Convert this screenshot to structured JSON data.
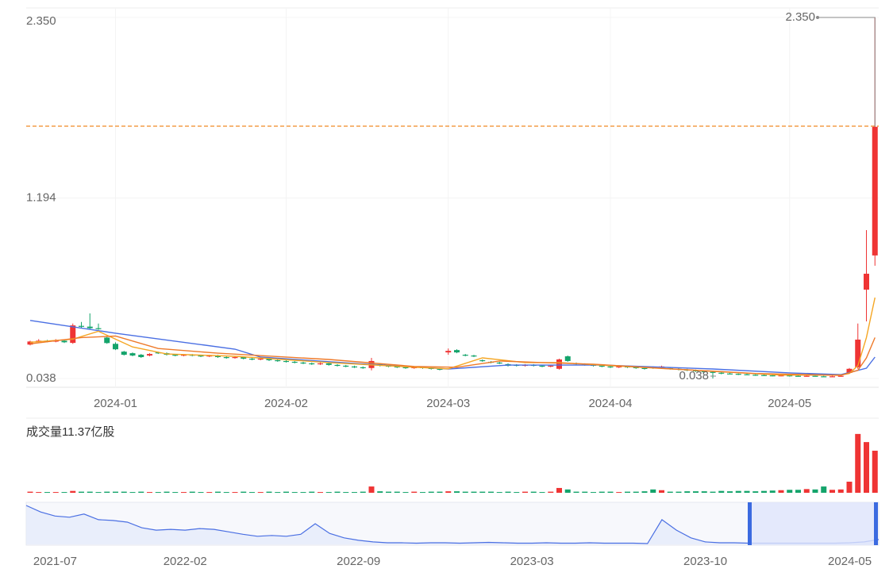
{
  "chart_data": {
    "type": "candlestick",
    "categories": [
      null,
      null,
      null,
      null,
      null,
      null,
      null,
      null,
      null,
      null,
      "2024-01",
      null,
      null,
      null,
      null,
      null,
      null,
      null,
      null,
      null,
      null,
      null,
      null,
      null,
      null,
      null,
      null,
      null,
      null,
      null,
      "2024-02",
      null,
      null,
      null,
      null,
      null,
      null,
      null,
      null,
      null,
      null,
      null,
      null,
      null,
      null,
      null,
      null,
      null,
      null,
      "2024-03",
      null,
      null,
      null,
      null,
      null,
      null,
      null,
      null,
      null,
      null,
      null,
      null,
      null,
      null,
      null,
      null,
      null,
      null,
      "2024-04",
      null,
      null,
      null,
      null,
      null,
      null,
      null,
      null,
      null,
      null,
      null,
      null,
      null,
      null,
      null,
      null,
      null,
      null,
      null,
      null,
      "2024-05",
      null,
      null,
      null,
      null,
      null,
      null,
      null,
      null,
      null,
      null
    ],
    "open": [
      0.255,
      0.275,
      0.28,
      0.275,
      0.28,
      0.266,
      0.375,
      0.37,
      0.36,
      0.3,
      0.26,
      0.21,
      0.2,
      0.19,
      0.185,
      0.205,
      0.2,
      0.19,
      0.185,
      0.19,
      0.185,
      0.18,
      0.185,
      0.175,
      0.17,
      0.175,
      0.165,
      0.16,
      0.165,
      0.155,
      0.15,
      0.145,
      0.14,
      0.135,
      0.13,
      0.135,
      0.125,
      0.12,
      0.115,
      0.11,
      0.105,
      0.13,
      0.12,
      0.115,
      0.11,
      0.105,
      0.11,
      0.105,
      0.1,
      0.205,
      0.22,
      0.19,
      0.185,
      0.155,
      0.145,
      0.14,
      0.13,
      0.125,
      0.12,
      0.125,
      0.12,
      0.115,
      0.1,
      0.18,
      0.135,
      0.13,
      0.125,
      0.12,
      0.115,
      0.11,
      0.115,
      0.11,
      0.105,
      0.11,
      0.11,
      0.105,
      0.1,
      0.095,
      0.09,
      0.085,
      0.08,
      0.075,
      0.07,
      0.068,
      0.065,
      0.062,
      0.06,
      0.058,
      0.056,
      0.058,
      0.055,
      0.053,
      0.055,
      0.052,
      0.05,
      0.052,
      0.074,
      0.11,
      0.607,
      0.826
    ],
    "close": [
      0.275,
      0.28,
      0.275,
      0.28,
      0.27,
      0.378,
      0.37,
      0.36,
      0.355,
      0.265,
      0.225,
      0.19,
      0.185,
      0.175,
      0.195,
      0.2,
      0.19,
      0.185,
      0.19,
      0.185,
      0.18,
      0.185,
      0.175,
      0.17,
      0.175,
      0.165,
      0.16,
      0.165,
      0.155,
      0.15,
      0.145,
      0.14,
      0.135,
      0.13,
      0.135,
      0.125,
      0.12,
      0.115,
      0.11,
      0.105,
      0.15,
      0.12,
      0.115,
      0.11,
      0.105,
      0.11,
      0.105,
      0.1,
      0.095,
      0.215,
      0.205,
      0.185,
      0.18,
      0.15,
      0.14,
      0.135,
      0.12,
      0.12,
      0.125,
      0.12,
      0.115,
      0.12,
      0.16,
      0.15,
      0.13,
      0.125,
      0.12,
      0.115,
      0.11,
      0.115,
      0.11,
      0.105,
      0.1,
      0.105,
      0.115,
      0.1,
      0.095,
      0.09,
      0.085,
      0.08,
      0.075,
      0.07,
      0.068,
      0.065,
      0.062,
      0.06,
      0.058,
      0.056,
      0.058,
      0.055,
      0.053,
      0.055,
      0.052,
      0.05,
      0.052,
      0.055,
      0.1,
      0.287,
      0.709,
      1.65
    ],
    "high": [
      0.28,
      0.29,
      0.285,
      0.29,
      0.285,
      0.39,
      0.4,
      0.455,
      0.39,
      0.31,
      0.27,
      0.215,
      0.205,
      0.195,
      0.2,
      0.21,
      0.205,
      0.195,
      0.195,
      0.195,
      0.19,
      0.19,
      0.19,
      0.18,
      0.18,
      0.18,
      0.17,
      0.17,
      0.17,
      0.16,
      0.155,
      0.15,
      0.145,
      0.14,
      0.14,
      0.14,
      0.13,
      0.125,
      0.12,
      0.115,
      0.17,
      0.135,
      0.125,
      0.12,
      0.115,
      0.115,
      0.115,
      0.11,
      0.105,
      0.23,
      0.225,
      0.195,
      0.19,
      0.16,
      0.15,
      0.145,
      0.135,
      0.13,
      0.13,
      0.13,
      0.125,
      0.125,
      0.165,
      0.185,
      0.14,
      0.135,
      0.13,
      0.125,
      0.12,
      0.12,
      0.12,
      0.115,
      0.11,
      0.115,
      0.12,
      0.11,
      0.105,
      0.1,
      0.095,
      0.09,
      0.085,
      0.08,
      0.075,
      0.07,
      0.07,
      0.065,
      0.065,
      0.06,
      0.062,
      0.06,
      0.058,
      0.058,
      0.057,
      0.055,
      0.055,
      0.058,
      0.105,
      0.39,
      0.988,
      2.35
    ],
    "low": [
      0.25,
      0.27,
      0.27,
      0.27,
      0.265,
      0.26,
      0.36,
      0.355,
      0.35,
      0.26,
      0.22,
      0.185,
      0.18,
      0.17,
      0.18,
      0.195,
      0.185,
      0.18,
      0.18,
      0.18,
      0.175,
      0.175,
      0.17,
      0.165,
      0.165,
      0.16,
      0.155,
      0.155,
      0.15,
      0.145,
      0.14,
      0.135,
      0.13,
      0.125,
      0.125,
      0.12,
      0.115,
      0.11,
      0.105,
      0.1,
      0.09,
      0.115,
      0.11,
      0.105,
      0.1,
      0.1,
      0.1,
      0.095,
      0.09,
      0.19,
      0.2,
      0.18,
      0.175,
      0.145,
      0.135,
      0.13,
      0.115,
      0.115,
      0.115,
      0.115,
      0.11,
      0.11,
      0.095,
      0.145,
      0.125,
      0.12,
      0.115,
      0.11,
      0.105,
      0.105,
      0.105,
      0.1,
      0.095,
      0.1,
      0.105,
      0.095,
      0.09,
      0.085,
      0.08,
      0.075,
      0.038,
      0.065,
      0.065,
      0.06,
      0.06,
      0.055,
      0.055,
      0.052,
      0.052,
      0.05,
      0.05,
      0.05,
      0.05,
      0.048,
      0.048,
      0.05,
      0.07,
      0.1,
      0.404,
      0.76
    ],
    "up_color": "#ef3434",
    "down_color": "#14a46b",
    "ylim": [
      -0.018,
      2.411
    ],
    "yticks": [
      {
        "value": 2.35,
        "label": "2.350"
      },
      1.194,
      0.038
    ],
    "grid": true,
    "reference_line": 1.654,
    "reference_color": "#f08a24",
    "high_label": "2.350",
    "low_label": "0.038",
    "moving_averages": [
      {
        "color": "#4a6fe3",
        "x": [
          0,
          10,
          24,
          27,
          38,
          49,
          56,
          67,
          80,
          89,
          95,
          98,
          99
        ],
        "values": [
          0.41,
          0.328,
          0.226,
          0.175,
          0.135,
          0.099,
          0.124,
          0.124,
          0.099,
          0.074,
          0.063,
          0.104,
          0.175
        ]
      },
      {
        "color": "#f5a623",
        "x": [
          0,
          5,
          8,
          12,
          16,
          24,
          35,
          45,
          49,
          53,
          58,
          62,
          68,
          78,
          88,
          95,
          96,
          97,
          98,
          99
        ],
        "values": [
          0.27,
          0.29,
          0.34,
          0.24,
          0.195,
          0.18,
          0.14,
          0.11,
          0.1,
          0.17,
          0.14,
          0.14,
          0.12,
          0.09,
          0.06,
          0.06,
          0.07,
          0.12,
          0.3,
          0.556
        ]
      },
      {
        "color": "#ee7a2a",
        "x": [
          0,
          6,
          10,
          15,
          22,
          35,
          45,
          50,
          55,
          60,
          66,
          75,
          85,
          95,
          97,
          98,
          99
        ],
        "values": [
          0.26,
          0.3,
          0.31,
          0.23,
          0.2,
          0.16,
          0.115,
          0.11,
          0.15,
          0.14,
          0.13,
          0.1,
          0.07,
          0.058,
          0.09,
          0.17,
          0.3
        ]
      }
    ],
    "volume": {
      "label": "成交量11.37亿股",
      "ylim": [
        0,
        16.3
      ],
      "values": [
        0.3,
        0.2,
        0.2,
        0.2,
        0.2,
        0.5,
        0.3,
        0.3,
        0.2,
        0.3,
        0.3,
        0.3,
        0.2,
        0.3,
        0.2,
        0.2,
        0.3,
        0.2,
        0.2,
        0.3,
        0.2,
        0.2,
        0.3,
        0.2,
        0.2,
        0.3,
        0.2,
        0.2,
        0.3,
        0.2,
        0.3,
        0.2,
        0.2,
        0.3,
        0.2,
        0.2,
        0.3,
        0.2,
        0.2,
        0.3,
        1.7,
        0.4,
        0.3,
        0.3,
        0.2,
        0.3,
        0.2,
        0.3,
        0.3,
        0.4,
        0.4,
        0.3,
        0.3,
        0.3,
        0.3,
        0.2,
        0.3,
        0.2,
        0.3,
        0.3,
        0.2,
        0.3,
        1.3,
        0.9,
        0.3,
        0.3,
        0.2,
        0.3,
        0.3,
        0.2,
        0.3,
        0.3,
        0.4,
        0.9,
        0.7,
        0.3,
        0.3,
        0.4,
        0.4,
        0.4,
        0.3,
        0.5,
        0.4,
        0.5,
        0.5,
        0.4,
        0.5,
        0.6,
        0.7,
        0.8,
        0.8,
        1.0,
        0.9,
        1.7,
        0.8,
        0.9,
        3.0,
        15.9,
        13.7,
        11.37
      ]
    },
    "navigator": {
      "color": "#4a6fe3",
      "ylim": [
        0,
        100
      ],
      "categories": [
        null,
        null,
        "2021-07",
        null,
        null,
        null,
        null,
        null,
        null,
        null,
        null,
        "2022-02",
        null,
        null,
        null,
        null,
        null,
        null,
        null,
        null,
        null,
        null,
        null,
        "2022-09",
        null,
        null,
        null,
        null,
        null,
        null,
        null,
        null,
        null,
        null,
        null,
        "2023-03",
        null,
        null,
        null,
        null,
        null,
        null,
        null,
        null,
        null,
        null,
        null,
        "2023-10",
        null,
        null,
        null,
        null,
        null,
        null,
        null,
        null,
        null,
        "2024-05",
        null,
        null
      ],
      "values": [
        96,
        80,
        70,
        67,
        75,
        61,
        59,
        55,
        41,
        35,
        37,
        35,
        39,
        37,
        31,
        25,
        20,
        22,
        20,
        25,
        51,
        27,
        16,
        10,
        6,
        4,
        4,
        3,
        4,
        4,
        3,
        4,
        5,
        4,
        3,
        3,
        4,
        3,
        3,
        4,
        3,
        3,
        3,
        2,
        61,
        35,
        16,
        6,
        4,
        4,
        3,
        3,
        3,
        3,
        3,
        3,
        3,
        4,
        6,
        12
      ]
    }
  }
}
